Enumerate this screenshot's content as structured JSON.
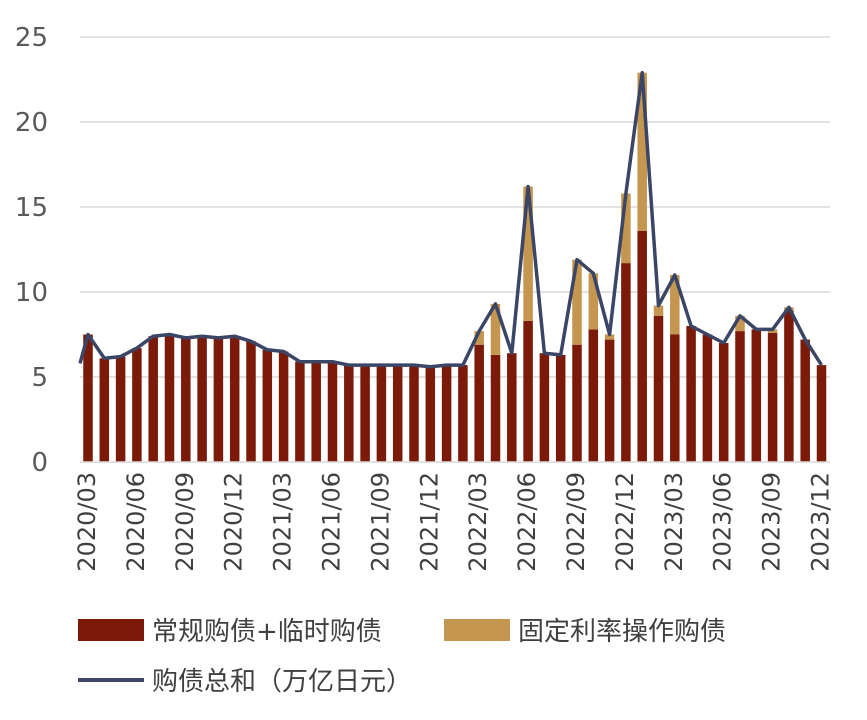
{
  "chart_data": {
    "type": "bar",
    "stacked": true,
    "categories": [
      "2020/03",
      "2020/04",
      "2020/05",
      "2020/06",
      "2020/07",
      "2020/08",
      "2020/09",
      "2020/10",
      "2020/11",
      "2020/12",
      "2021/01",
      "2021/02",
      "2021/03",
      "2021/04",
      "2021/05",
      "2021/06",
      "2021/07",
      "2021/08",
      "2021/09",
      "2021/10",
      "2021/11",
      "2021/12",
      "2022/01",
      "2022/02",
      "2022/03",
      "2022/04",
      "2022/05",
      "2022/06",
      "2022/07",
      "2022/08",
      "2022/09",
      "2022/10",
      "2022/11",
      "2022/12",
      "2023/01",
      "2023/02",
      "2023/03",
      "2023/04",
      "2023/05",
      "2023/06",
      "2023/07",
      "2023/08",
      "2023/09",
      "2023/10",
      "2023/11",
      "2023/12"
    ],
    "x_tick_labels": [
      "2020/03",
      "2020/06",
      "2020/09",
      "2020/12",
      "2021/03",
      "2021/06",
      "2021/09",
      "2021/12",
      "2022/03",
      "2022/06",
      "2022/09",
      "2022/12",
      "2023/03",
      "2023/06",
      "2023/09",
      "2023/12"
    ],
    "series": [
      {
        "name": "常规购债+临时购债",
        "kind": "bar",
        "color": "#7B1A09",
        "values": [
          7.5,
          6.1,
          6.2,
          6.7,
          7.4,
          7.5,
          7.3,
          7.4,
          7.3,
          7.4,
          7.1,
          6.6,
          6.5,
          5.9,
          5.9,
          5.9,
          5.7,
          5.7,
          5.7,
          5.7,
          5.7,
          5.6,
          5.7,
          5.7,
          6.9,
          6.3,
          6.4,
          8.3,
          6.4,
          6.3,
          6.9,
          7.8,
          7.2,
          11.7,
          13.6,
          8.6,
          7.5,
          8.0,
          7.5,
          7.0,
          7.7,
          7.8,
          7.6,
          8.9,
          7.2,
          5.7
        ]
      },
      {
        "name": "固定利率操作购债",
        "kind": "bar",
        "color": "#C4964F",
        "values": [
          0,
          0,
          0,
          0,
          0,
          0,
          0,
          0,
          0,
          0,
          0,
          0,
          0,
          0,
          0,
          0,
          0,
          0,
          0,
          0,
          0,
          0,
          0,
          0,
          0.8,
          3.0,
          0,
          7.9,
          0,
          0,
          5.0,
          3.3,
          0.3,
          4.1,
          9.3,
          0.6,
          3.5,
          0,
          0,
          0,
          0.9,
          0,
          0.2,
          0.2,
          0,
          0
        ]
      },
      {
        "name": "购债总和（万亿日元）",
        "kind": "line",
        "color": "#3B4566",
        "values": [
          7.5,
          6.1,
          6.2,
          6.7,
          7.4,
          7.5,
          7.3,
          7.4,
          7.3,
          7.4,
          7.1,
          6.6,
          6.5,
          5.9,
          5.9,
          5.9,
          5.7,
          5.7,
          5.7,
          5.7,
          5.7,
          5.6,
          5.7,
          5.7,
          7.7,
          9.3,
          6.4,
          16.2,
          6.4,
          6.3,
          11.9,
          11.1,
          7.5,
          15.8,
          22.9,
          9.2,
          11.0,
          8.0,
          7.5,
          7.0,
          8.6,
          7.8,
          7.8,
          9.1,
          7.2,
          5.7
        ]
      }
    ],
    "line_start_value": 5.8,
    "ylim": [
      0,
      25
    ],
    "y_ticks": [
      "0",
      "5",
      "10",
      "15",
      "20",
      "25"
    ],
    "grid": true,
    "legend": {
      "position": "bottom"
    },
    "xlabel": "",
    "ylabel": "",
    "title": ""
  }
}
